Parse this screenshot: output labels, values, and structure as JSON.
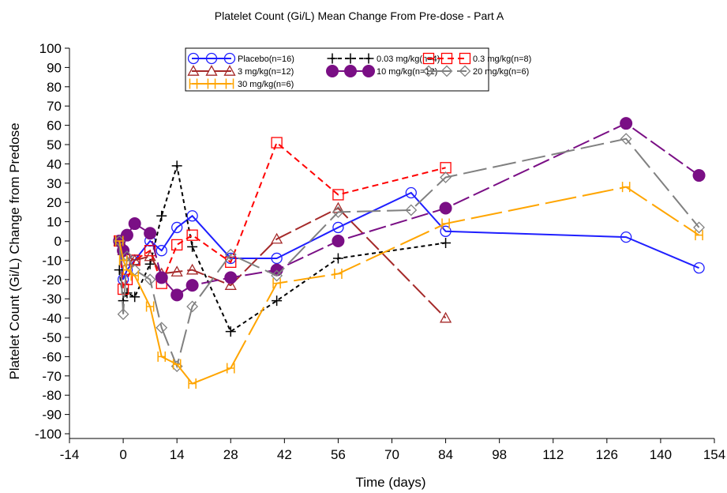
{
  "chart_data": {
    "type": "line",
    "title": "Platelet Count (Gi/L) Mean Change From Pre-dose - Part A",
    "xlabel": "Time (days)",
    "ylabel": "Platelet Count (Gi/L) Change from Predose",
    "xlim": [
      -14,
      154
    ],
    "ylim": [
      -100,
      100
    ],
    "xticks": [
      "-14",
      "0",
      "14",
      "28",
      "42",
      "56",
      "70",
      "84",
      "98",
      "112",
      "126",
      "140",
      "154"
    ],
    "yticks": [
      "100",
      "90",
      "80",
      "70",
      "60",
      "50",
      "40",
      "30",
      "20",
      "10",
      "0",
      "-10",
      "-20",
      "-30",
      "-40",
      "-50",
      "-60",
      "-70",
      "-80",
      "-90",
      "-100"
    ],
    "grid": false,
    "legend_position": "top-center",
    "series": [
      {
        "name": "Placebo(n=16)",
        "color": "#1f1fff",
        "marker": "circle-open",
        "dash": "solid",
        "x": [
          -1,
          0,
          1,
          3,
          7,
          10,
          14,
          18,
          28,
          40,
          56,
          75,
          84,
          131,
          150
        ],
        "y": [
          0,
          -20,
          -15,
          -10,
          0,
          -5,
          7,
          13,
          -9,
          -9,
          7,
          25,
          5,
          2,
          -14
        ]
      },
      {
        "name": "0.03 mg/kg(n=4)",
        "color": "#000000",
        "marker": "plus",
        "dash": "short-dash",
        "x": [
          -1,
          0,
          1,
          3,
          7,
          10,
          14,
          18,
          28,
          40,
          56,
          84
        ],
        "y": [
          -15,
          -31,
          -27,
          -29,
          -12,
          13,
          39,
          -3,
          -47,
          -31,
          -9,
          -1
        ]
      },
      {
        "name": "0.3 mg/kg(n=8)",
        "color": "#ff0000",
        "marker": "square-open",
        "dash": "dash",
        "x": [
          -1,
          0,
          1,
          3,
          7,
          10,
          14,
          18,
          28,
          40,
          56,
          84
        ],
        "y": [
          0,
          -25,
          -20,
          -10,
          -5,
          -22,
          -2,
          3,
          -11,
          51,
          24,
          38
        ]
      },
      {
        "name": "3 mg/kg(n=12)",
        "color": "#a52a2a",
        "marker": "triangle-open",
        "dash": "long-dash",
        "x": [
          -1,
          0,
          1,
          3,
          7,
          10,
          14,
          18,
          28,
          40,
          56,
          84
        ],
        "y": [
          0,
          -5,
          -8,
          -10,
          -8,
          -17,
          -16,
          -15,
          -23,
          1,
          17,
          -40
        ]
      },
      {
        "name": "10 mg/kg(n=12)",
        "color": "#7a0f85",
        "marker": "circle-filled",
        "dash": "long-dash",
        "x": [
          -1,
          0,
          1,
          3,
          7,
          10,
          14,
          18,
          28,
          40,
          56,
          84,
          131,
          150
        ],
        "y": [
          0,
          -5,
          3,
          9,
          4,
          -19,
          -28,
          -23,
          -19,
          -15,
          0,
          17,
          61,
          34
        ]
      },
      {
        "name": "20 mg/kg(n=6)",
        "color": "#808080",
        "marker": "diamond-open",
        "dash": "dash-gap",
        "x": [
          -1,
          0,
          1,
          3,
          7,
          10,
          14,
          18,
          28,
          40,
          56,
          75,
          84,
          131,
          150
        ],
        "y": [
          0,
          -38,
          -8,
          -15,
          -20,
          -45,
          -65,
          -34,
          -7,
          -18,
          15,
          16,
          33,
          53,
          7
        ]
      },
      {
        "name": "30 mg/kg(n=6)",
        "color": "#ffa500",
        "marker": "H",
        "dash": "solid-then-dash",
        "x": [
          -1,
          0,
          1,
          3,
          7,
          10,
          14,
          18,
          28,
          40,
          56,
          84,
          131,
          150
        ],
        "y": [
          0,
          -10,
          -15,
          -18,
          -34,
          -60,
          -64,
          -74,
          -66,
          -22,
          -17,
          9,
          28,
          3
        ]
      }
    ]
  }
}
